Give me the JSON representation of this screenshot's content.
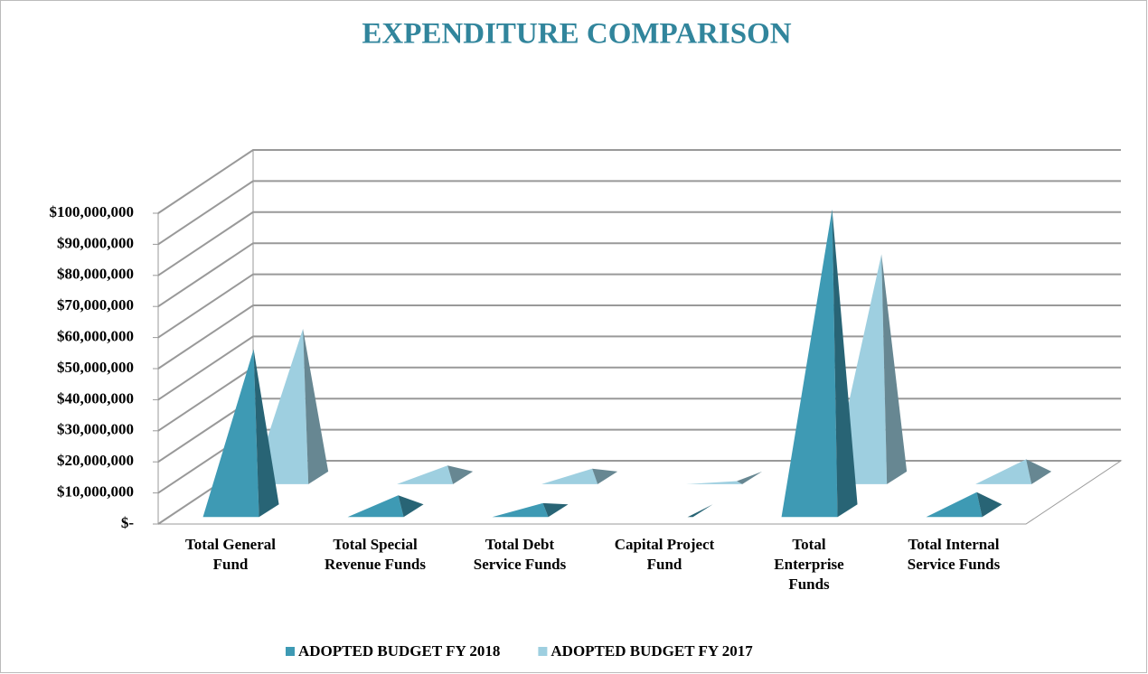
{
  "chart_data": {
    "type": "pyramid3d",
    "title": "EXPENDITURE COMPARISON",
    "categories": [
      "Total General Fund",
      "Total Special Revenue Funds",
      "Total Debt Service Funds",
      "Capital Project Fund",
      "Total Enterprise Funds",
      "Total Internal Service Funds"
    ],
    "series": [
      {
        "name": "ADOPTED BUDGET FY 2018",
        "color": "#3e9ab4",
        "values": [
          54000000,
          7000000,
          4500000,
          0,
          99000000,
          8000000
        ]
      },
      {
        "name": "ADOPTED BUDGET FY 2017",
        "color": "#9ecfe0",
        "values": [
          50000000,
          6000000,
          5000000,
          1000000,
          74000000,
          8000000
        ]
      }
    ],
    "ylim": [
      0,
      100000000
    ],
    "yticks": [
      {
        "value": 0,
        "label": "$-"
      },
      {
        "value": 10000000,
        "label": "$10,000,000"
      },
      {
        "value": 20000000,
        "label": "$20,000,000"
      },
      {
        "value": 30000000,
        "label": "$30,000,000"
      },
      {
        "value": 40000000,
        "label": "$40,000,000"
      },
      {
        "value": 50000000,
        "label": "$50,000,000"
      },
      {
        "value": 60000000,
        "label": "$60,000,000"
      },
      {
        "value": 70000000,
        "label": "$70,000,000"
      },
      {
        "value": 80000000,
        "label": "$80,000,000"
      },
      {
        "value": 90000000,
        "label": "$90,000,000"
      },
      {
        "value": 100000000,
        "label": "$100,000,000"
      }
    ],
    "grid": true
  }
}
